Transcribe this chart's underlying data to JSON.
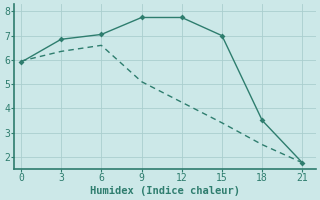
{
  "line1_x": [
    0,
    3,
    6,
    9,
    12,
    15,
    18,
    21
  ],
  "line1_y": [
    5.9,
    6.85,
    7.05,
    7.75,
    7.75,
    7.0,
    3.5,
    1.75
  ],
  "line2_x": [
    0,
    3,
    6,
    9,
    12,
    15,
    18,
    21
  ],
  "line2_y": [
    5.95,
    6.35,
    6.6,
    5.1,
    4.25,
    3.4,
    2.5,
    1.75
  ],
  "line_color": "#2e7d6e",
  "bg_color": "#cce8e8",
  "grid_major_color": "#aacece",
  "grid_minor_color": "#c4dede",
  "xlabel": "Humidex (Indice chaleur)",
  "xlim": [
    -0.5,
    22
  ],
  "ylim": [
    1.5,
    8.3
  ],
  "xticks": [
    0,
    3,
    6,
    9,
    12,
    15,
    18,
    21
  ],
  "yticks": [
    2,
    3,
    4,
    5,
    6,
    7,
    8
  ],
  "xlabel_fontsize": 7.5,
  "tick_fontsize": 7
}
